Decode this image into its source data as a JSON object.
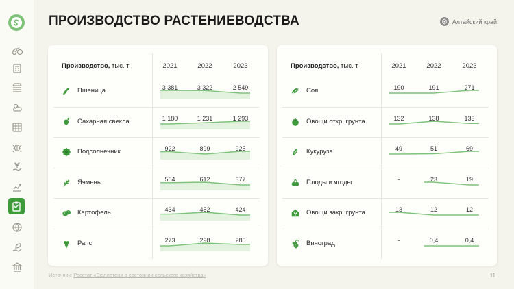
{
  "title": "ПРОИЗВОДСТВО РАСТЕНИЕВОДСТВА",
  "region": "Алтайский край",
  "footer": {
    "prefix": "Источник:",
    "link": "Росстат «Бюллетени о состоянии сельского хозяйства»"
  },
  "page_number": "11",
  "colors": {
    "accent": "#3f9a3c",
    "spark_line": "#7cc27a",
    "spark_fill": "#d8eed5"
  },
  "sidebar": {
    "icons": [
      "tractor-icon",
      "calculator-icon",
      "field-icon",
      "weather-icon",
      "grid-icon",
      "bug-icon",
      "hand-plant-icon",
      "growth-chart-icon",
      "clipboard-icon",
      "globe-icon",
      "leaf-hand-icon",
      "bank-icon"
    ],
    "active": "clipboard-icon"
  },
  "tables": [
    {
      "header_bold": "Производство,",
      "header_unit": "тыс. т",
      "years": [
        "2021",
        "2022",
        "2023"
      ],
      "rows": [
        {
          "name": "Пшеница",
          "icon": "wheat-icon",
          "values": [
            "3 381",
            "3 322",
            "2 549"
          ],
          "nums": [
            3381,
            3322,
            2549
          ]
        },
        {
          "name": "Сахарная свекла",
          "icon": "beet-icon",
          "values": [
            "1 180",
            "1 231",
            "1 293"
          ],
          "nums": [
            1180,
            1231,
            1293
          ]
        },
        {
          "name": "Подсолнечник",
          "icon": "sunflower-icon",
          "values": [
            "922",
            "899",
            "925"
          ],
          "nums": [
            922,
            899,
            925
          ]
        },
        {
          "name": "Ячмень",
          "icon": "barley-icon",
          "values": [
            "564",
            "612",
            "377"
          ],
          "nums": [
            564,
            612,
            377
          ]
        },
        {
          "name": "Картофель",
          "icon": "potato-icon",
          "values": [
            "434",
            "452",
            "424"
          ],
          "nums": [
            434,
            452,
            424
          ]
        },
        {
          "name": "Рапс",
          "icon": "rapeseed-icon",
          "values": [
            "273",
            "298",
            "285"
          ],
          "nums": [
            273,
            298,
            285
          ]
        }
      ]
    },
    {
      "header_bold": "Производство,",
      "header_unit": "тыс. т",
      "years": [
        "2021",
        "2022",
        "2023"
      ],
      "rows": [
        {
          "name": "Соя",
          "icon": "soy-icon",
          "values": [
            "190",
            "191",
            "271"
          ],
          "nums": [
            190,
            191,
            271
          ]
        },
        {
          "name": "Овощи откр. грунта",
          "icon": "tomato-icon",
          "values": [
            "132",
            "138",
            "133"
          ],
          "nums": [
            132,
            138,
            133
          ]
        },
        {
          "name": "Кукуруза",
          "icon": "corn-icon",
          "values": [
            "49",
            "51",
            "69"
          ],
          "nums": [
            49,
            51,
            69
          ]
        },
        {
          "name": "Плоды и ягоды",
          "icon": "fruit-icon",
          "values": [
            "-",
            "23",
            "19"
          ],
          "nums": [
            null,
            23,
            19
          ]
        },
        {
          "name": "Овощи закр. грунта",
          "icon": "greenhouse-icon",
          "values": [
            "13",
            "12",
            "12"
          ],
          "nums": [
            13,
            12,
            12
          ]
        },
        {
          "name": "Виноград",
          "icon": "grapes-icon",
          "values": [
            "-",
            "0,4",
            "0,4"
          ],
          "nums": [
            null,
            0.4,
            0.4
          ]
        }
      ]
    }
  ]
}
